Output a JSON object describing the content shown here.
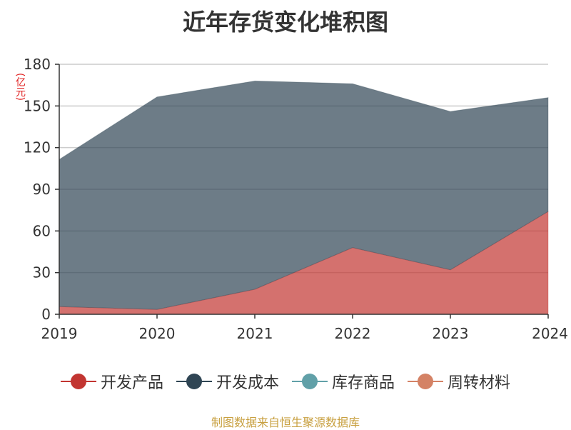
{
  "chart_data": {
    "type": "area",
    "stacked": true,
    "title": "近年存货变化堆积图",
    "unit_label": "(亿元)",
    "source": "制图数据来自恒生聚源数据库",
    "categories": [
      "2019",
      "2020",
      "2021",
      "2022",
      "2023",
      "2024"
    ],
    "y_ticks": [
      "0",
      "30",
      "60",
      "90",
      "120",
      "150",
      "180"
    ],
    "ylim": [
      0,
      180
    ],
    "grid": true,
    "legend_position": "bottom",
    "legend": [
      {
        "name": "开发产品",
        "color": "#c23531"
      },
      {
        "name": "开发成本",
        "color": "#2f4554"
      },
      {
        "name": "库存商品",
        "color": "#61a0a8"
      },
      {
        "name": "周转材料",
        "color": "#d48265"
      }
    ],
    "series": [
      {
        "name": "开发产品",
        "color": "#c23531",
        "values": [
          5.5,
          3.5,
          18,
          48,
          32,
          74
        ]
      },
      {
        "name": "开发成本",
        "color": "#2f4554",
        "values": [
          106,
          153,
          150,
          118,
          114,
          82
        ]
      }
    ]
  }
}
